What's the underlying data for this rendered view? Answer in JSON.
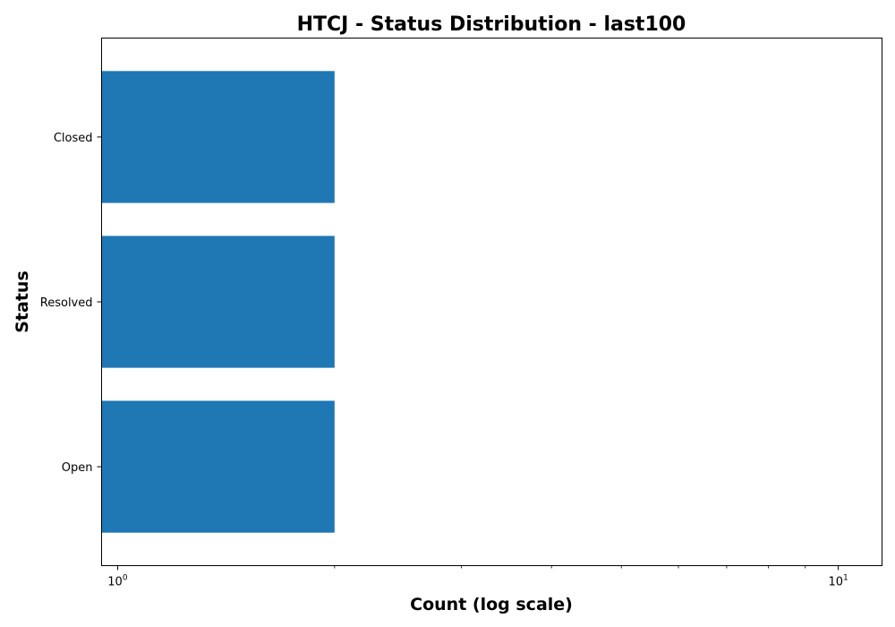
{
  "chart_data": {
    "type": "bar",
    "orientation": "horizontal",
    "title": "HTCJ - Status Distribution - last100",
    "xlabel": "Count (log scale)",
    "ylabel": "Status",
    "x_scale": "log",
    "xlim": [
      0.95,
      11.5
    ],
    "categories": [
      "Open",
      "Resolved",
      "Closed"
    ],
    "values": [
      2,
      2,
      2
    ],
    "bar_color": "#1f77b4",
    "x_major_ticks": [
      {
        "value": 1,
        "base": "10",
        "exponent": "0"
      },
      {
        "value": 10,
        "base": "10",
        "exponent": "1"
      }
    ],
    "x_minor_ticks": [
      2,
      3,
      4,
      5,
      6,
      7,
      8,
      9
    ],
    "grid": false,
    "legend": "none"
  }
}
